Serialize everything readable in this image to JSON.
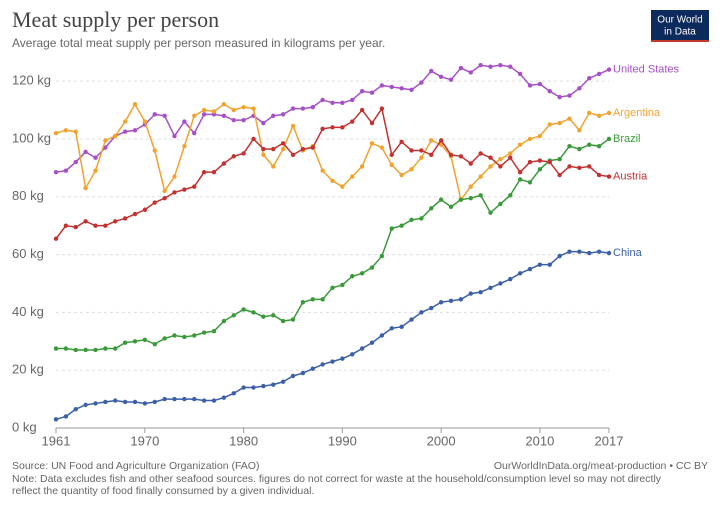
{
  "chart_data": {
    "type": "line",
    "title": "Meat supply per person",
    "subtitle": "Average total meat supply per person measured in kilograms per year.",
    "logo": [
      "Our World",
      "in Data"
    ],
    "source": "Source: UN Food and Agriculture Organization (FAO)",
    "credit": "OurWorldInData.org/meat-production • CC BY",
    "note": [
      "Note: Data excludes fish and other seafood sources. figures do not correct for waste at the household/consumption level so may not directly",
      "reflect the quantity of food finally consumed by a given individual."
    ],
    "x": [
      1961,
      1962,
      1963,
      1964,
      1965,
      1966,
      1967,
      1968,
      1969,
      1970,
      1971,
      1972,
      1973,
      1974,
      1975,
      1976,
      1977,
      1978,
      1979,
      1980,
      1981,
      1982,
      1983,
      1984,
      1985,
      1986,
      1987,
      1988,
      1989,
      1990,
      1991,
      1992,
      1993,
      1994,
      1995,
      1996,
      1997,
      1998,
      1999,
      2000,
      2001,
      2002,
      2003,
      2004,
      2005,
      2006,
      2007,
      2008,
      2009,
      2010,
      2011,
      2012,
      2013,
      2014,
      2015,
      2016,
      2017
    ],
    "xlim": [
      1961,
      2017
    ],
    "xticks": [
      1961,
      1970,
      1980,
      1990,
      2000,
      2010,
      2017
    ],
    "ylim": [
      0,
      128
    ],
    "yticks": [
      {
        "value": 0,
        "label": "0 kg"
      },
      {
        "value": 20,
        "label": "20 kg"
      },
      {
        "value": 40,
        "label": "40 kg"
      },
      {
        "value": 60,
        "label": "60 kg"
      },
      {
        "value": 80,
        "label": "80 kg"
      },
      {
        "value": 100,
        "label": "100 kg"
      },
      {
        "value": 120,
        "label": "120 kg"
      }
    ],
    "grid": true,
    "series": [
      {
        "name": "United States",
        "color": "#a64fc6",
        "values": [
          88.5,
          89,
          92,
          95.5,
          93.5,
          97,
          101,
          102.5,
          103,
          105,
          108.5,
          108,
          101,
          106,
          102,
          108.5,
          108.5,
          108,
          106.5,
          106.5,
          108,
          105.5,
          108,
          108.5,
          110.5,
          110.5,
          111,
          113.5,
          112.5,
          112.5,
          113.5,
          116.5,
          116,
          118.5,
          118,
          117.5,
          117,
          119.5,
          123.5,
          121.5,
          120.5,
          124.5,
          123,
          125.5,
          125,
          125.5,
          125,
          122.5,
          118.5,
          119,
          116.5,
          114.5,
          115,
          117.5,
          121,
          122.5,
          124
        ]
      },
      {
        "name": "Argentina",
        "color": "#f0a32f",
        "values": [
          102,
          103,
          102.5,
          83,
          89,
          99.5,
          101,
          106,
          112,
          106,
          96,
          82,
          87,
          97.5,
          108,
          110,
          109.5,
          112,
          110,
          111,
          110.5,
          94.5,
          90.5,
          96.5,
          104.5,
          96,
          97.5,
          89,
          85.5,
          83.5,
          87,
          90.5,
          98.5,
          97,
          91,
          87.5,
          89.5,
          93.5,
          99.5,
          98,
          94,
          79,
          83.5,
          87,
          90.5,
          93,
          95,
          98,
          100,
          101,
          105,
          105.5,
          107,
          103,
          109,
          108,
          109
        ]
      },
      {
        "name": "Brazil",
        "color": "#3a9a3a",
        "values": [
          27.5,
          27.5,
          27,
          27,
          27,
          27.5,
          27.5,
          29.5,
          30,
          30.5,
          29,
          31,
          32,
          31.5,
          32,
          33,
          33.5,
          37,
          39,
          41,
          40,
          38.5,
          39,
          37,
          37.5,
          43.5,
          44.5,
          44.5,
          48.5,
          49.5,
          52.5,
          53.5,
          55.5,
          59.5,
          69,
          70,
          72,
          72.5,
          76,
          79,
          76.5,
          79,
          79.5,
          80.5,
          74.5,
          77.5,
          80.5,
          86,
          85,
          89.5,
          92.5,
          93,
          97.5,
          96.5,
          98,
          97.5,
          100
        ]
      },
      {
        "name": "Austria",
        "color": "#c43131",
        "values": [
          65.5,
          70,
          69.5,
          71.5,
          70,
          70,
          71.5,
          72.5,
          74,
          75.5,
          78,
          79.5,
          81.5,
          82.5,
          83.5,
          88.5,
          88.5,
          91.5,
          94,
          95,
          100,
          96.5,
          96.5,
          98.5,
          94.5,
          96.5,
          97,
          103.5,
          104,
          104,
          106,
          110,
          105.5,
          110.5,
          94.5,
          99,
          96,
          96,
          94.5,
          99.5,
          94.5,
          94,
          91.5,
          95,
          93.5,
          90.5,
          93.5,
          88.5,
          92,
          92.5,
          92,
          87.5,
          90.5,
          90,
          90.5,
          87.5,
          87
        ]
      },
      {
        "name": "China",
        "color": "#3b5fa8",
        "values": [
          3,
          4,
          6.5,
          8,
          8.5,
          9,
          9.5,
          9,
          9,
          8.5,
          9,
          10,
          10,
          10,
          10,
          9.5,
          9.5,
          10.5,
          12,
          14,
          14,
          14.5,
          15,
          16,
          18,
          19,
          20.5,
          22,
          23,
          24,
          25.5,
          27.5,
          29.5,
          32,
          34.5,
          35,
          37.5,
          40,
          41.5,
          43.5,
          44,
          44.5,
          46.5,
          47,
          48.5,
          50,
          51.5,
          53.5,
          55,
          56.5,
          56.5,
          59.5,
          61,
          61,
          60.5,
          61,
          60.5
        ]
      }
    ]
  }
}
